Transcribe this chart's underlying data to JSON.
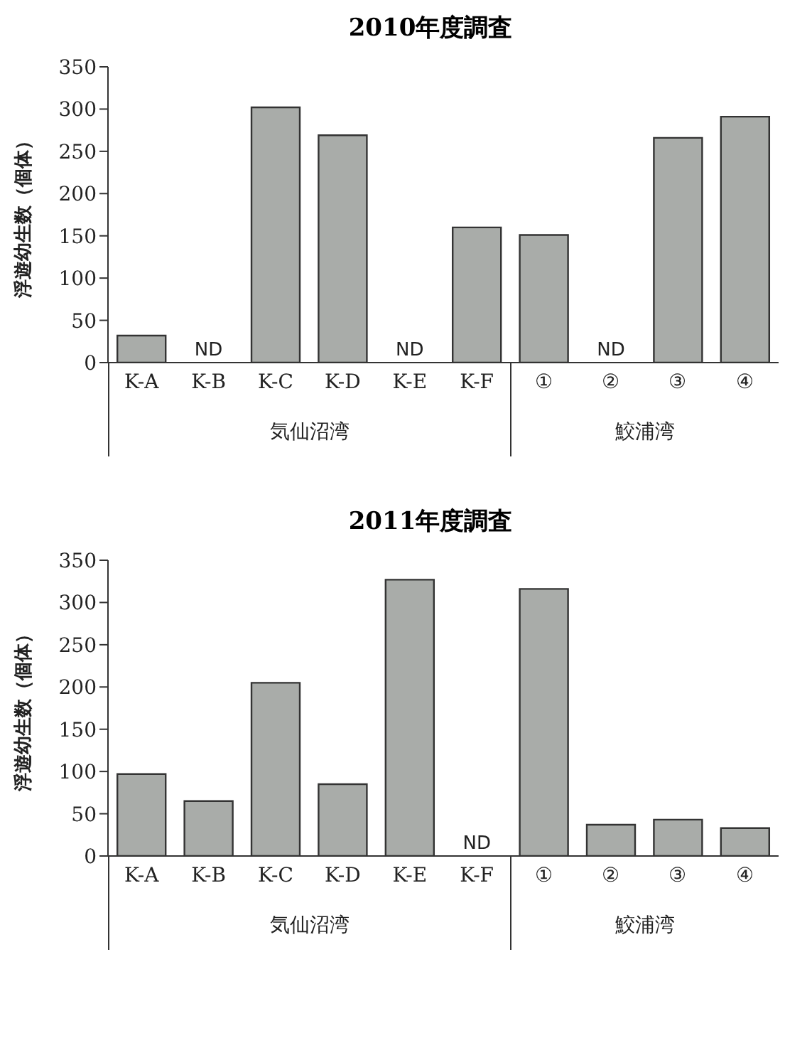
{
  "chart_data": [
    {
      "type": "bar",
      "title": "2010年度調査",
      "ylabel": "浮遊幼生数（個体）",
      "categories": [
        "K-A",
        "K-B",
        "K-C",
        "K-D",
        "K-E",
        "K-F",
        "①",
        "②",
        "③",
        "④"
      ],
      "values": [
        32,
        null,
        302,
        269,
        null,
        160,
        151,
        null,
        266,
        291
      ],
      "value_labels": [
        null,
        "ND",
        null,
        null,
        "ND",
        null,
        null,
        "ND",
        null,
        null
      ],
      "color": "#a9aca9",
      "ylim": [
        0,
        350
      ],
      "yticks": [
        0,
        50,
        100,
        150,
        200,
        250,
        300,
        350
      ],
      "grid": false,
      "legend": false,
      "annotations": [
        "気仙沼湾",
        "鮫浦湾"
      ]
    },
    {
      "type": "bar",
      "title": "2011年度調査",
      "ylabel": "浮遊幼生数（個体）",
      "categories": [
        "K-A",
        "K-B",
        "K-C",
        "K-D",
        "K-E",
        "K-F",
        "①",
        "②",
        "③",
        "④"
      ],
      "values": [
        97,
        65,
        205,
        85,
        327,
        null,
        316,
        37,
        43,
        33
      ],
      "value_labels": [
        null,
        null,
        null,
        null,
        null,
        "ND",
        null,
        null,
        null,
        null
      ],
      "color": "#a9aca9",
      "ylim": [
        0,
        350
      ],
      "yticks": [
        0,
        50,
        100,
        150,
        200,
        250,
        300,
        350
      ],
      "grid": false,
      "legend": false,
      "annotations": [
        "気仙沼湾",
        "鮫浦湾"
      ]
    }
  ]
}
